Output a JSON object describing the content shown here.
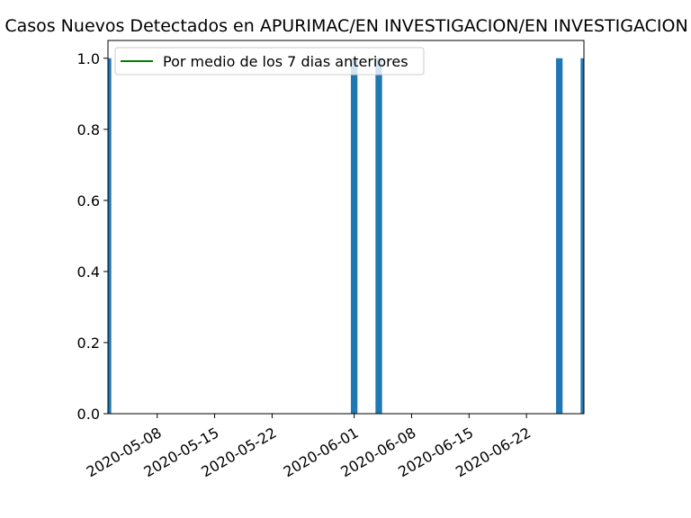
{
  "chart_data": {
    "type": "bar",
    "title": "Casos Nuevos Detectados en APURIMAC/EN INVESTIGACION/EN INVESTIGACION",
    "xlabel": "",
    "ylabel": "",
    "x_range": [
      "2020-05-02",
      "2020-06-29"
    ],
    "ylim": [
      0.0,
      1.05
    ],
    "x_ticks": [
      "2020-05-08",
      "2020-05-15",
      "2020-05-22",
      "2020-06-01",
      "2020-06-08",
      "2020-06-15",
      "2020-06-22"
    ],
    "y_ticks": [
      "0.0",
      "0.2",
      "0.4",
      "0.6",
      "0.8",
      "1.0"
    ],
    "grid": false,
    "legend_position": "top-left",
    "series": [
      {
        "kind": "bar",
        "color": "#1f77b4",
        "x": [
          "2020-05-02",
          "2020-06-01",
          "2020-06-04",
          "2020-06-26",
          "2020-06-29"
        ],
        "values": [
          1,
          1,
          1,
          1,
          1
        ]
      },
      {
        "kind": "line",
        "name": "Por medio de los 7 dias anteriores",
        "color": "#008000",
        "x": [],
        "values": []
      }
    ]
  }
}
